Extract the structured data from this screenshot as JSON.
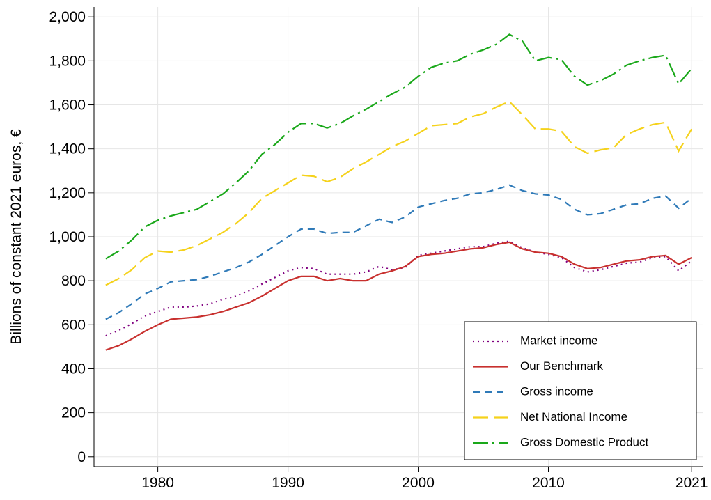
{
  "chart_data": {
    "type": "line",
    "y_label": "Billions of constant 2021 euros, €",
    "x": [
      1976,
      1977,
      1978,
      1979,
      1980,
      1981,
      1982,
      1983,
      1984,
      1985,
      1986,
      1987,
      1988,
      1989,
      1990,
      1991,
      1992,
      1993,
      1994,
      1995,
      1996,
      1997,
      1998,
      1999,
      2000,
      2001,
      2002,
      2003,
      2004,
      2005,
      2006,
      2007,
      2008,
      2009,
      2010,
      2011,
      2012,
      2013,
      2014,
      2015,
      2016,
      2017,
      2018,
      2019,
      2020,
      2021
    ],
    "series": [
      {
        "name": "Market income",
        "color": "#800080",
        "dash": "2,5",
        "values": [
          550,
          575,
          605,
          640,
          660,
          680,
          680,
          685,
          695,
          715,
          730,
          755,
          785,
          815,
          845,
          860,
          855,
          830,
          830,
          830,
          840,
          865,
          850,
          860,
          915,
          925,
          935,
          945,
          955,
          955,
          970,
          980,
          950,
          930,
          920,
          905,
          860,
          840,
          850,
          865,
          880,
          885,
          905,
          910,
          845,
          890
        ]
      },
      {
        "name": "Our Benchmark",
        "color": "#c8302e",
        "dash": "none",
        "values": [
          485,
          505,
          535,
          570,
          600,
          625,
          630,
          635,
          645,
          660,
          680,
          700,
          730,
          765,
          800,
          820,
          820,
          800,
          810,
          800,
          800,
          830,
          845,
          865,
          910,
          920,
          925,
          935,
          945,
          950,
          965,
          975,
          945,
          930,
          925,
          910,
          875,
          855,
          860,
          875,
          890,
          895,
          910,
          915,
          875,
          905
        ]
      },
      {
        "name": "Gross income",
        "color": "#2f7ab8",
        "dash": "10,7",
        "values": [
          625,
          655,
          695,
          740,
          765,
          795,
          800,
          805,
          820,
          840,
          860,
          885,
          920,
          960,
          1000,
          1035,
          1035,
          1015,
          1020,
          1020,
          1050,
          1080,
          1065,
          1090,
          1135,
          1150,
          1165,
          1175,
          1195,
          1200,
          1215,
          1235,
          1210,
          1195,
          1190,
          1170,
          1125,
          1100,
          1105,
          1125,
          1145,
          1150,
          1175,
          1185,
          1130,
          1175
        ]
      },
      {
        "name": "Net National Income",
        "color": "#f5d21c",
        "dash": "22,8",
        "values": [
          780,
          810,
          850,
          905,
          935,
          930,
          940,
          960,
          990,
          1020,
          1060,
          1110,
          1175,
          1210,
          1245,
          1280,
          1275,
          1250,
          1270,
          1310,
          1340,
          1375,
          1410,
          1435,
          1470,
          1505,
          1510,
          1515,
          1545,
          1560,
          1590,
          1615,
          1555,
          1490,
          1490,
          1480,
          1410,
          1380,
          1395,
          1405,
          1465,
          1490,
          1510,
          1520,
          1390,
          1490
        ]
      },
      {
        "name": "Gross Domestic Product",
        "color": "#1aa81a",
        "dash": "22,6,3,6",
        "values": [
          900,
          935,
          985,
          1045,
          1075,
          1095,
          1110,
          1125,
          1160,
          1195,
          1245,
          1300,
          1375,
          1420,
          1475,
          1515,
          1515,
          1495,
          1515,
          1550,
          1580,
          1615,
          1650,
          1680,
          1730,
          1770,
          1790,
          1800,
          1830,
          1850,
          1875,
          1920,
          1890,
          1800,
          1815,
          1805,
          1730,
          1690,
          1710,
          1740,
          1780,
          1800,
          1815,
          1825,
          1695,
          1765
        ]
      }
    ],
    "xlim": [
      1975.1,
      2021.9
    ],
    "ylim": [
      -45,
      2045
    ],
    "xticks": [
      1980,
      1990,
      2000,
      2010,
      2021
    ],
    "yticks": [
      0,
      200,
      400,
      600,
      800,
      {
        "value": 1000,
        "label": "1,000"
      },
      {
        "value": 1200,
        "label": "1,200"
      },
      {
        "value": 1400,
        "label": "1,400"
      },
      {
        "value": 1600,
        "label": "1,600"
      },
      {
        "value": 1800,
        "label": "1,800"
      },
      {
        "value": 2000,
        "label": "2,000"
      }
    ],
    "grid": true,
    "legend": "lower right"
  }
}
